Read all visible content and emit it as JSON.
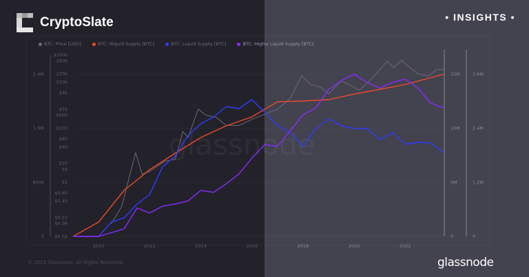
{
  "header": {
    "brand": "CryptoSlate",
    "badge": "• INSIGHTS •"
  },
  "footer": {
    "copyright": "© 2023 Glassnode. All Rights Reserved.",
    "logo_text": "glassnode"
  },
  "watermark": "glassnode",
  "colors": {
    "background_left": "#23222b",
    "background_right": "#43424f"
  },
  "chart_data": {
    "type": "line",
    "grid": true,
    "legend_position": "top",
    "x_ticks": [
      "2010",
      "2012",
      "2014",
      "2016",
      "2018",
      "2020",
      "2022"
    ],
    "axes": {
      "supply_left": {
        "ticks": [
          "0",
          "800K",
          "1.6M",
          "2.4M"
        ],
        "range": [
          0,
          2400000
        ]
      },
      "price": {
        "scale": "log",
        "ticks": [
          "$100k",
          "$60k",
          "$20k",
          "$10k",
          "$4k",
          "$1k",
          "$600",
          "$200",
          "$80",
          "$40",
          "$10",
          "$6",
          "$2",
          "$0.80",
          "$0.40",
          "$0.10",
          "$0.06",
          "$0.02"
        ],
        "range": [
          0.02,
          100000
        ]
      },
      "supply_right_1": {
        "ticks": [
          "0",
          "5M",
          "10M",
          "15M"
        ],
        "range": [
          0,
          15000000
        ]
      },
      "supply_right_2": {
        "ticks": [
          "0",
          "1.2M",
          "2.4M",
          "3.6M"
        ],
        "range": [
          0,
          3600000
        ]
      }
    },
    "series": [
      {
        "name": "BTC: Price [USD]",
        "color": "#6e6a74",
        "axis": "price",
        "points": [
          [
            2010.5,
            0.06
          ],
          [
            2010.9,
            0.25
          ],
          [
            2011.45,
            25
          ],
          [
            2011.7,
            4
          ],
          [
            2012.0,
            5
          ],
          [
            2012.6,
            12
          ],
          [
            2013.0,
            14
          ],
          [
            2013.3,
            150
          ],
          [
            2013.5,
            90
          ],
          [
            2013.9,
            1000
          ],
          [
            2014.2,
            600
          ],
          [
            2014.6,
            500
          ],
          [
            2015.0,
            250
          ],
          [
            2015.5,
            250
          ],
          [
            2016.0,
            420
          ],
          [
            2016.5,
            650
          ],
          [
            2017.0,
            1000
          ],
          [
            2017.5,
            2500
          ],
          [
            2017.95,
            17000
          ],
          [
            2018.3,
            8000
          ],
          [
            2018.7,
            6500
          ],
          [
            2019.0,
            3700
          ],
          [
            2019.5,
            11000
          ],
          [
            2019.9,
            7200
          ],
          [
            2020.2,
            5000
          ],
          [
            2020.6,
            11000
          ],
          [
            2020.95,
            25000
          ],
          [
            2021.3,
            58000
          ],
          [
            2021.55,
            34000
          ],
          [
            2021.85,
            64000
          ],
          [
            2022.1,
            40000
          ],
          [
            2022.5,
            20000
          ],
          [
            2022.9,
            16500
          ],
          [
            2023.2,
            28000
          ],
          [
            2023.5,
            30000
          ]
        ]
      },
      {
        "name": "BTC: Illiquid Supply [BTC]",
        "color": "#f04a2b",
        "axis": "supply_right_1",
        "points": [
          [
            2009.0,
            0
          ],
          [
            2010.0,
            1330000.0
          ],
          [
            2011.0,
            4260000.0
          ],
          [
            2012.0,
            6170000.0
          ],
          [
            2013.0,
            7690000.0
          ],
          [
            2014.0,
            9150000.0
          ],
          [
            2015.0,
            10230000.0
          ],
          [
            2016.0,
            11060000.0
          ],
          [
            2017.0,
            12460000.0
          ],
          [
            2018.0,
            12520000.0
          ],
          [
            2019.0,
            12650000.0
          ],
          [
            2020.0,
            13160000.0
          ],
          [
            2021.0,
            13600000.0
          ],
          [
            2022.0,
            14050000.0
          ],
          [
            2023.0,
            14680000.0
          ],
          [
            2023.5,
            15000000.0
          ]
        ]
      },
      {
        "name": "BTC: Liquid Supply [BTC]",
        "color": "#2f3cff",
        "axis": "supply_right_1",
        "points": [
          [
            2009.0,
            0
          ],
          [
            2010.0,
            0
          ],
          [
            2010.5,
            1330000.0
          ],
          [
            2011.0,
            1720000.0
          ],
          [
            2011.5,
            2990000.0
          ],
          [
            2012.0,
            3880000.0
          ],
          [
            2012.5,
            6420000.0
          ],
          [
            2013.0,
            7440000.0
          ],
          [
            2013.5,
            9340000.0
          ],
          [
            2014.0,
            10420000.0
          ],
          [
            2014.5,
            11060000.0
          ],
          [
            2015.0,
            12010000.0
          ],
          [
            2015.5,
            11820000.0
          ],
          [
            2016.0,
            12650000.0
          ],
          [
            2016.5,
            11500000.0
          ],
          [
            2017.0,
            10230000.0
          ],
          [
            2017.5,
            9600000.0
          ],
          [
            2018.0,
            8330000.0
          ],
          [
            2018.5,
            9980000.0
          ],
          [
            2019.0,
            10870000.0
          ],
          [
            2019.5,
            10230000.0
          ],
          [
            2020.0,
            9980000.0
          ],
          [
            2020.5,
            9980000.0
          ],
          [
            2021.0,
            8960000.0
          ],
          [
            2021.5,
            9600000.0
          ],
          [
            2022.0,
            8520000.0
          ],
          [
            2022.5,
            8710000.0
          ],
          [
            2023.0,
            8640000.0
          ],
          [
            2023.5,
            7750000.0
          ]
        ]
      },
      {
        "name": "BTC: Highly Liquid Supply [BTC]",
        "color": "#8a2cff",
        "axis": "supply_right_2",
        "points": [
          [
            2009.0,
            0
          ],
          [
            2010.0,
            0
          ],
          [
            2011.0,
            170000.0
          ],
          [
            2011.5,
            630000.0
          ],
          [
            2012.0,
            520000.0
          ],
          [
            2012.5,
            670000.0
          ],
          [
            2013.0,
            720000.0
          ],
          [
            2013.5,
            790000.0
          ],
          [
            2014.0,
            1020000.0
          ],
          [
            2014.5,
            980000.0
          ],
          [
            2015.0,
            1170000.0
          ],
          [
            2015.5,
            1390000.0
          ],
          [
            2016.0,
            1740000.0
          ],
          [
            2016.5,
            2040000.0
          ],
          [
            2017.0,
            2000000.0
          ],
          [
            2017.5,
            2350000.0
          ],
          [
            2018.0,
            2700000.0
          ],
          [
            2018.5,
            2850000.0
          ],
          [
            2019.0,
            3260000.0
          ],
          [
            2019.5,
            3460000.0
          ],
          [
            2020.0,
            3600000.0
          ],
          [
            2020.5,
            3420000.0
          ],
          [
            2021.0,
            3290000.0
          ],
          [
            2021.5,
            3420000.0
          ],
          [
            2022.0,
            3490000.0
          ],
          [
            2022.5,
            3290000.0
          ],
          [
            2023.0,
            2960000.0
          ],
          [
            2023.5,
            2850000.0
          ]
        ]
      }
    ]
  }
}
